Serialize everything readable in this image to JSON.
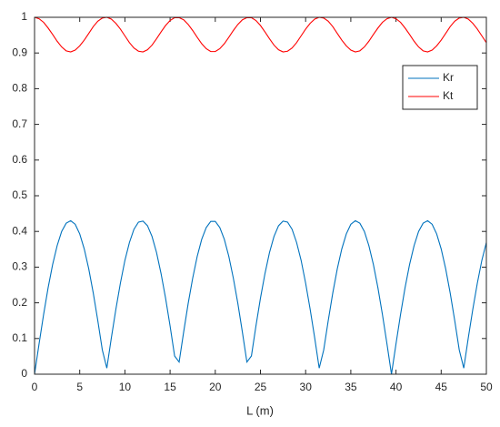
{
  "chart_data": {
    "type": "line",
    "x_label": "L (m)",
    "x": [
      0,
      0.5,
      1,
      1.5,
      2,
      2.5,
      3,
      3.5,
      4,
      4.5,
      5,
      5.5,
      6,
      6.5,
      7,
      7.5,
      8,
      8.5,
      9,
      9.5,
      10,
      10.5,
      11,
      11.5,
      12,
      12.5,
      13,
      13.5,
      14,
      14.5,
      15,
      15.5,
      16,
      16.5,
      17,
      17.5,
      18,
      18.5,
      19,
      19.5,
      20,
      20.5,
      21,
      21.5,
      22,
      22.5,
      23,
      23.5,
      24,
      24.5,
      25,
      25.5,
      26,
      26.5,
      27,
      27.5,
      28,
      28.5,
      29,
      29.5,
      30,
      30.5,
      31,
      31.5,
      32,
      32.5,
      33,
      33.5,
      34,
      34.5,
      35,
      35.5,
      36,
      36.5,
      37,
      37.5,
      38,
      38.5,
      39,
      39.5,
      40,
      40.5,
      41,
      41.5,
      42,
      42.5,
      43,
      43.5,
      44,
      44.5,
      45,
      45.5,
      46,
      46.5,
      47,
      47.5,
      48,
      48.5,
      49,
      49.5,
      50
    ],
    "series": [
      {
        "name": "Kr",
        "color": "#0072bd",
        "values": [
          0,
          0.085,
          0.167,
          0.242,
          0.307,
          0.36,
          0.4,
          0.423,
          0.43,
          0.42,
          0.393,
          0.351,
          0.295,
          0.227,
          0.15,
          0.068,
          0.017,
          0.102,
          0.182,
          0.255,
          0.319,
          0.369,
          0.406,
          0.426,
          0.429,
          0.416,
          0.386,
          0.341,
          0.282,
          0.213,
          0.135,
          0.051,
          0.034,
          0.118,
          0.198,
          0.269,
          0.33,
          0.378,
          0.411,
          0.428,
          0.428,
          0.411,
          0.378,
          0.33,
          0.269,
          0.198,
          0.118,
          0.034,
          0.051,
          0.135,
          0.213,
          0.282,
          0.341,
          0.386,
          0.416,
          0.429,
          0.426,
          0.406,
          0.369,
          0.319,
          0.255,
          0.182,
          0.102,
          0.017,
          0.068,
          0.15,
          0.227,
          0.295,
          0.351,
          0.393,
          0.42,
          0.43,
          0.423,
          0.4,
          0.36,
          0.307,
          0.242,
          0.167,
          0.085,
          0,
          0.085,
          0.167,
          0.242,
          0.307,
          0.36,
          0.4,
          0.423,
          0.43,
          0.42,
          0.393,
          0.351,
          0.295,
          0.227,
          0.15,
          0.068,
          0.017,
          0.102,
          0.182,
          0.255,
          0.319,
          0.369
        ]
      },
      {
        "name": "Kt",
        "color": "#ff0000",
        "values": [
          1,
          0.996,
          0.986,
          0.97,
          0.952,
          0.933,
          0.917,
          0.906,
          0.903,
          0.908,
          0.92,
          0.936,
          0.955,
          0.974,
          0.989,
          0.998,
          1,
          0.995,
          0.983,
          0.967,
          0.948,
          0.929,
          0.914,
          0.905,
          0.903,
          0.909,
          0.922,
          0.94,
          0.959,
          0.977,
          0.991,
          0.999,
          0.999,
          0.993,
          0.98,
          0.963,
          0.944,
          0.926,
          0.912,
          0.904,
          0.904,
          0.912,
          0.926,
          0.944,
          0.963,
          0.98,
          0.993,
          0.999,
          0.999,
          0.991,
          0.977,
          0.959,
          0.94,
          0.922,
          0.909,
          0.903,
          0.905,
          0.914,
          0.929,
          0.948,
          0.967,
          0.983,
          0.995,
          1,
          0.998,
          0.989,
          0.974,
          0.955,
          0.936,
          0.92,
          0.908,
          0.903,
          0.906,
          0.917,
          0.933,
          0.952,
          0.97,
          0.986,
          0.996,
          1,
          0.996,
          0.986,
          0.97,
          0.952,
          0.933,
          0.917,
          0.906,
          0.903,
          0.908,
          0.92,
          0.936,
          0.955,
          0.974,
          0.989,
          0.998,
          1,
          0.995,
          0.983,
          0.967,
          0.948,
          0.929
        ]
      }
    ],
    "xlim": [
      0,
      50
    ],
    "xticks": [
      0,
      5,
      10,
      15,
      20,
      25,
      30,
      35,
      40,
      45,
      50
    ],
    "ylim": [
      0,
      1
    ],
    "yticks": [
      0,
      0.1,
      0.2,
      0.3,
      0.4,
      0.5,
      0.6,
      0.7,
      0.8,
      0.9,
      1
    ],
    "grid": false,
    "legend_position": "upper-right"
  }
}
